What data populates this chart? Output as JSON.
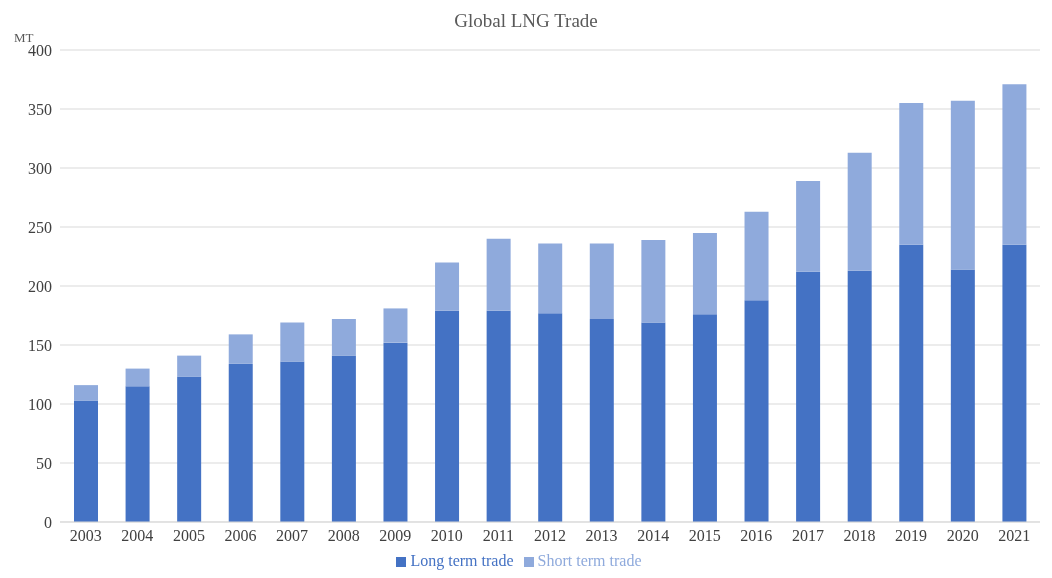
{
  "chart_data": {
    "type": "bar",
    "title": "Global LNG Trade",
    "ylabel": "MT",
    "categories": [
      "2003",
      "2004",
      "2005",
      "2006",
      "2007",
      "2008",
      "2009",
      "2010",
      "2011",
      "2012",
      "2013",
      "2014",
      "2015",
      "2016",
      "2017",
      "2018",
      "2019",
      "2020",
      "2021"
    ],
    "series": [
      {
        "name": "Long term trade",
        "color": "#4472c4",
        "values": [
          103,
          115,
          123,
          134,
          136,
          141,
          152,
          179,
          179,
          177,
          172,
          169,
          176,
          188,
          212,
          213,
          235,
          214,
          235
        ]
      },
      {
        "name": "Short term trade",
        "color": "#8faadc",
        "values": [
          13,
          15,
          18,
          25,
          33,
          31,
          29,
          41,
          61,
          59,
          64,
          70,
          69,
          75,
          77,
          100,
          120,
          143,
          136
        ]
      }
    ],
    "stacked": true,
    "ylim": [
      0,
      400
    ],
    "yticks": [
      0,
      50,
      100,
      150,
      200,
      250,
      300,
      350,
      400
    ],
    "grid": "y",
    "legend": "bottom"
  }
}
